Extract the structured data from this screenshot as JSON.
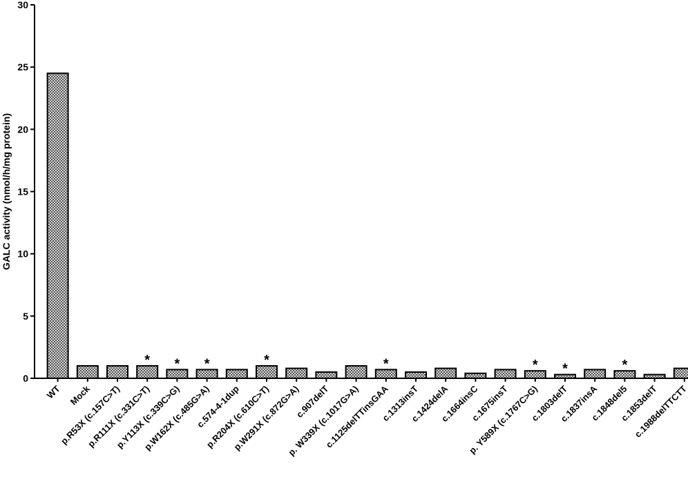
{
  "chart_data": {
    "type": "bar",
    "title": "",
    "xlabel": "",
    "ylabel": "GALC activity (nmol/h/mg protein)",
    "ylim": [
      0,
      30
    ],
    "yticks": [
      0,
      5,
      10,
      15,
      20,
      25,
      30
    ],
    "grid": false,
    "bar_fill": "#999999",
    "categories": [
      "WT",
      "Mock",
      "p.R53X (c.157C>T)",
      "p.R111X (c.331C>T)",
      "p.Y113X (c.339C>G)",
      "p.W162X (c.485G>A)",
      "c.574-4-1dup",
      "p.R204X (c.610C>T)",
      "p.W291X (c.872G>A)",
      "c.907delT",
      "p. W339X (c.1017G>A)",
      "c.1125delTTinsGAA",
      "c.1313insT",
      "c.1424delA",
      "c.1664insC",
      "c.1675insT",
      "p. Y589X (c.1767C>G)",
      "c.1803delT",
      "c.1837insA",
      "c.1848del5",
      "c.1853delT",
      "c.1988delTTCTT"
    ],
    "values": [
      24.5,
      1.0,
      1.0,
      1.0,
      0.7,
      0.7,
      0.7,
      1.0,
      0.8,
      0.5,
      1.0,
      0.7,
      0.5,
      0.8,
      0.4,
      0.7,
      0.6,
      0.3,
      0.7,
      0.6,
      0.3,
      0.8
    ],
    "significant": [
      false,
      false,
      false,
      true,
      true,
      true,
      false,
      true,
      false,
      false,
      false,
      true,
      false,
      false,
      false,
      false,
      true,
      true,
      false,
      true,
      false,
      false
    ],
    "significance_marker": "*"
  }
}
